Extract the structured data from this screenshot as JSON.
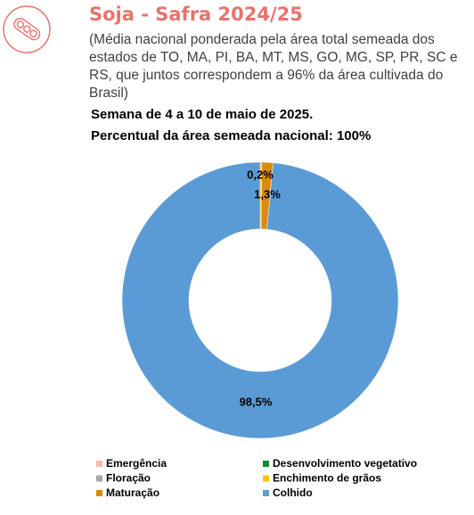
{
  "chart_data": {
    "type": "pie",
    "title": "Soja - Safra 2024/25",
    "subtitle": "(Média nacional ponderada pela área total semeada dos estados de TO, MA, PI, BA, MT, MS, GO, MG, SP, PR, SC e RS, que juntos correspondem a 96% da área cultivada do Brasil)",
    "notes": [
      "Semana de 4 a 10 de maio de 2025.",
      "Percentual da área semeada nacional: 100%"
    ],
    "categories": [
      "Emergência",
      "Desenvolvimento vegetativo",
      "Floração",
      "Enchimento de grãos",
      "Maturação",
      "Colhido"
    ],
    "values": [
      0,
      0,
      0,
      0.2,
      1.3,
      98.5
    ],
    "value_labels": [
      null,
      null,
      null,
      "0,2%",
      "1,3%",
      "98,5%"
    ],
    "colors": [
      "#f4b9a7",
      "#138a2a",
      "#a6a6a6",
      "#ffc000",
      "#d98a10",
      "#5b9bd5"
    ],
    "donut": true
  }
}
